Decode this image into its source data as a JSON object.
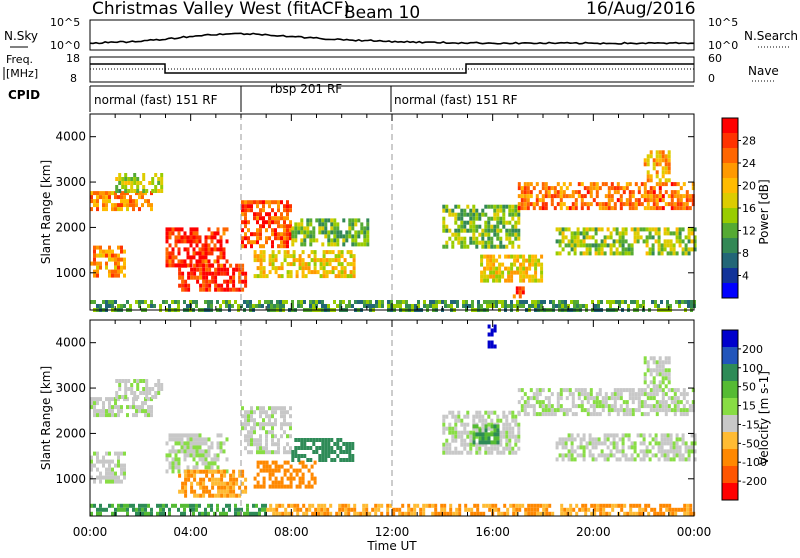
{
  "header": {
    "title": "Christmas Valley West (fitACF)",
    "beam": "Beam 10",
    "date": "16/Aug/2016"
  },
  "top_panel": {
    "left_label": "N.Sky",
    "left_ticks": [
      "10^5",
      "10^0"
    ],
    "right_label": "N.Search",
    "right_ticks": [
      "10^5",
      "10^0"
    ]
  },
  "freq_panel": {
    "left_label_1": "Freq.",
    "left_label_2": "[MHz]",
    "left_ticks": [
      "18",
      "8"
    ],
    "right_label": "Nave",
    "right_ticks": [
      "60",
      "0"
    ]
  },
  "cpid": {
    "label": "CPID",
    "segments": [
      "normal (fast) 151 RF",
      "rbsp 201 RF",
      "normal (fast) 151 RF"
    ]
  },
  "chart_data": [
    {
      "type": "heatmap",
      "title": "",
      "ylabel": "Slant Range [km]",
      "xlabel": "Time UT",
      "x_range": [
        "00:00",
        "24:00"
      ],
      "xticks": [
        "00:00",
        "04:00",
        "08:00",
        "12:00",
        "16:00",
        "20:00",
        "00:00"
      ],
      "ylim": [
        180,
        4500
      ],
      "yticks": [
        1000,
        2000,
        3000,
        4000
      ],
      "colorbar": {
        "label": "Power [dB]",
        "ticks": [
          "28",
          "24",
          "20",
          "16",
          "12",
          "8",
          "4"
        ],
        "colors": [
          "#ff0000",
          "#ff3300",
          "#ff6600",
          "#ff9900",
          "#ffbb00",
          "#ddcc00",
          "#99cc00",
          "#55aa33",
          "#338855",
          "#226677",
          "#113399",
          "#0000ff"
        ]
      },
      "regions": [
        {
          "t0": 0.0,
          "t1": 2.5,
          "r0": 2400,
          "r1": 2800,
          "level": 22
        },
        {
          "t0": 1.0,
          "t1": 2.8,
          "r0": 2800,
          "r1": 3200,
          "level": 14
        },
        {
          "t0": 0.0,
          "t1": 1.4,
          "r0": 900,
          "r1": 1600,
          "level": 22
        },
        {
          "t0": 3.0,
          "t1": 5.5,
          "r0": 1200,
          "r1": 2000,
          "level": 28
        },
        {
          "t0": 3.5,
          "t1": 6.2,
          "r0": 600,
          "r1": 1200,
          "level": 28
        },
        {
          "t0": 6.0,
          "t1": 8.0,
          "r0": 1600,
          "r1": 2600,
          "level": 26
        },
        {
          "t0": 6.5,
          "t1": 10.5,
          "r0": 900,
          "r1": 1500,
          "level": 18
        },
        {
          "t0": 8.0,
          "t1": 11.0,
          "r0": 1600,
          "r1": 2200,
          "level": 12
        },
        {
          "t0": 14.0,
          "t1": 17.0,
          "r0": 1600,
          "r1": 2500,
          "level": 12
        },
        {
          "t0": 15.5,
          "t1": 18.0,
          "r0": 800,
          "r1": 1400,
          "level": 18
        },
        {
          "t0": 16.8,
          "t1": 17.2,
          "r0": 500,
          "r1": 700,
          "level": 28
        },
        {
          "t0": 17.0,
          "t1": 24.0,
          "r0": 2400,
          "r1": 3000,
          "level": 24
        },
        {
          "t0": 18.5,
          "t1": 24.0,
          "r0": 1400,
          "r1": 2000,
          "level": 14
        },
        {
          "t0": 22.0,
          "t1": 23.0,
          "r0": 3000,
          "r1": 3700,
          "level": 20
        },
        {
          "t0": 0.0,
          "t1": 24.0,
          "r0": 200,
          "r1": 400,
          "level": 10
        }
      ]
    },
    {
      "type": "heatmap",
      "title": "",
      "ylabel": "Slant Range [km]",
      "xlabel": "Time UT",
      "x_range": [
        "00:00",
        "24:00"
      ],
      "xticks": [
        "00:00",
        "04:00",
        "08:00",
        "12:00",
        "16:00",
        "20:00",
        "00:00"
      ],
      "ylim": [
        180,
        4500
      ],
      "yticks": [
        1000,
        2000,
        3000,
        4000
      ],
      "colorbar": {
        "label": "Velocity [m s-1]",
        "ticks": [
          "200",
          "100",
          "50",
          "15",
          "-15",
          "-50",
          "-100",
          "-200"
        ],
        "colors": [
          "#0000cc",
          "#2255bb",
          "#2e8b57",
          "#55bb33",
          "#88dd44",
          "#c8c8c8",
          "#ffbb33",
          "#ff8800",
          "#ff5500",
          "#ff0000"
        ]
      },
      "regions": [
        {
          "t0": 0.0,
          "t1": 2.5,
          "r0": 2400,
          "r1": 2800,
          "level": 0
        },
        {
          "t0": 1.0,
          "t1": 2.8,
          "r0": 2800,
          "r1": 3200,
          "level": 0
        },
        {
          "t0": 0.0,
          "t1": 1.4,
          "r0": 900,
          "r1": 1600,
          "level": 0
        },
        {
          "t0": 3.0,
          "t1": 5.5,
          "r0": 1200,
          "r1": 2000,
          "level": 0
        },
        {
          "t0": 3.5,
          "t1": 6.2,
          "r0": 600,
          "r1": 1200,
          "level": -40
        },
        {
          "t0": 6.0,
          "t1": 8.0,
          "r0": 1600,
          "r1": 2600,
          "level": 0
        },
        {
          "t0": 6.5,
          "t1": 9.0,
          "r0": 800,
          "r1": 1400,
          "level": -60
        },
        {
          "t0": 8.0,
          "t1": 10.5,
          "r0": 1400,
          "r1": 1900,
          "level": 40
        },
        {
          "t0": 14.0,
          "t1": 17.0,
          "r0": 1600,
          "r1": 2500,
          "level": 0
        },
        {
          "t0": 15.2,
          "t1": 16.2,
          "r0": 1800,
          "r1": 2200,
          "level": 30
        },
        {
          "t0": 15.8,
          "t1": 16.1,
          "r0": 3900,
          "r1": 4400,
          "level": 200
        },
        {
          "t0": 17.0,
          "t1": 24.0,
          "r0": 2400,
          "r1": 3000,
          "level": 0
        },
        {
          "t0": 18.5,
          "t1": 24.0,
          "r0": 1400,
          "r1": 2000,
          "level": 0
        },
        {
          "t0": 22.0,
          "t1": 23.0,
          "r0": 3000,
          "r1": 3700,
          "level": 0
        },
        {
          "t0": 0.0,
          "t1": 7.0,
          "r0": 200,
          "r1": 450,
          "level": 30
        },
        {
          "t0": 7.0,
          "t1": 24.0,
          "r0": 200,
          "r1": 450,
          "level": -40
        }
      ]
    }
  ]
}
